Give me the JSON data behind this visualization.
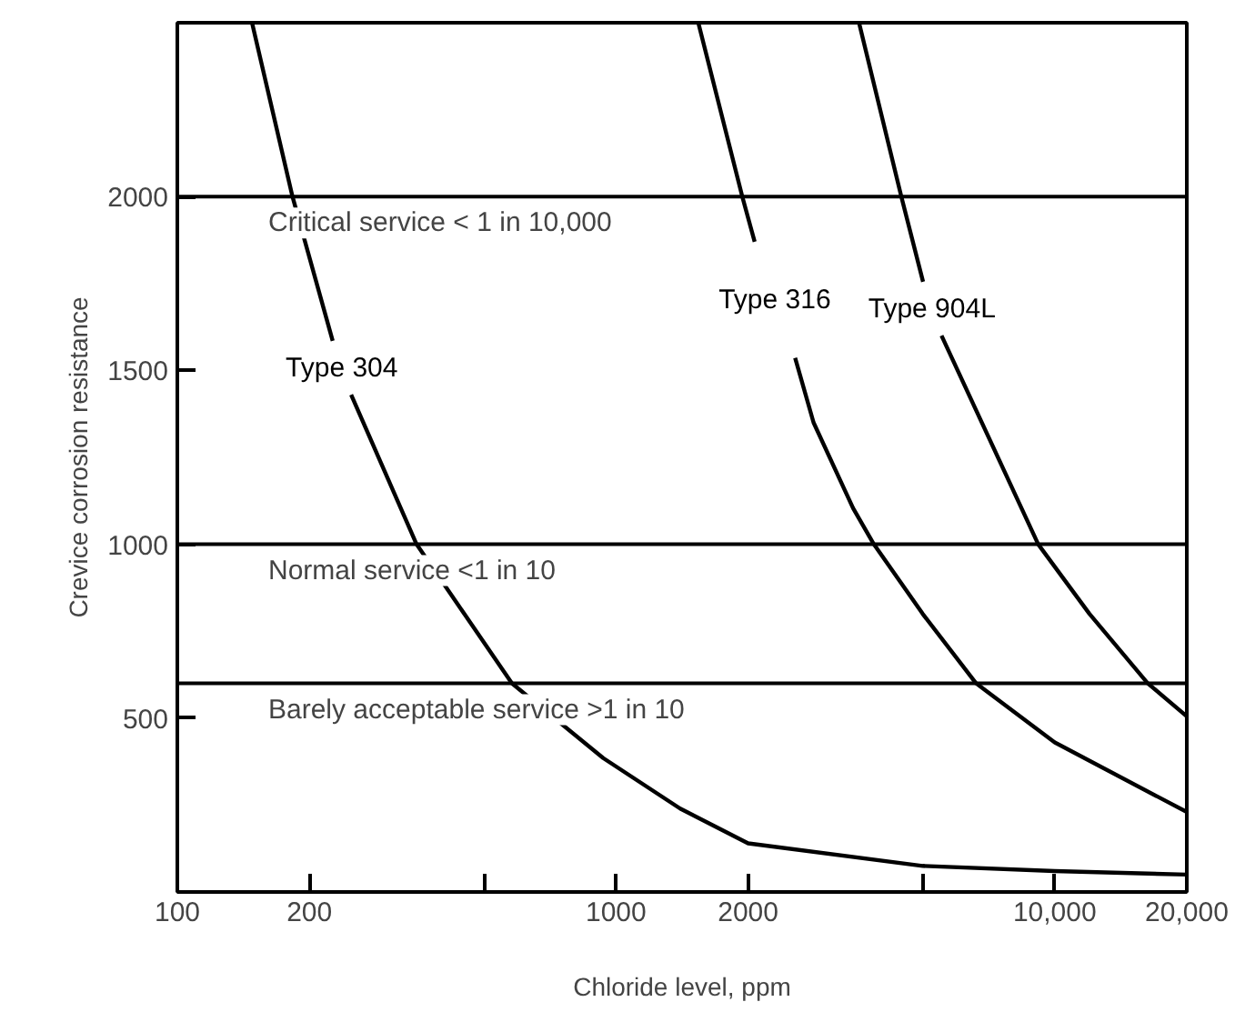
{
  "chart_data": {
    "type": "line",
    "xlabel": "Chloride level, ppm",
    "ylabel": "Crevice corrosion resistance",
    "log": "x",
    "xlim": [
      100,
      20000
    ],
    "ylim": [
      0,
      2500
    ],
    "xticks": [
      100,
      200,
      {
        "value": 500,
        "label": null
      },
      1000,
      2000,
      {
        "value": 5000,
        "label": null
      },
      {
        "value": 10000,
        "label": "10,000"
      },
      {
        "value": 20000,
        "label": "20,000"
      }
    ],
    "yticks": [
      500,
      1000,
      1500,
      2000
    ],
    "series": [
      {
        "name": "Type 304",
        "color": "#000000",
        "x": [
          148,
          183,
          226,
          237,
          249,
          351,
          579,
          935,
          1400,
          2000,
          5000,
          10000,
          20000
        ],
        "values": [
          2500,
          2000,
          1585,
          null,
          1430,
          1000,
          600,
          385,
          240,
          140,
          75,
          60,
          50
        ]
      },
      {
        "name": "Type 316",
        "color": "#000000",
        "x": [
          1540,
          1940,
          2070,
          2300,
          2560,
          2820,
          3470,
          3870,
          5000,
          6620,
          10000,
          20000
        ],
        "values": [
          2500,
          2000,
          1870,
          null,
          1536,
          1350,
          1104,
          1000,
          800,
          600,
          430,
          230
        ]
      },
      {
        "name": "Type 904L",
        "color": "#000000",
        "x": [
          3580,
          4470,
          5010,
          5250,
          5520,
          8320,
          9170,
          12000,
          16300,
          20000
        ],
        "values": [
          2500,
          2000,
          1755,
          null,
          1600,
          1115,
          1000,
          800,
          600,
          505
        ]
      }
    ],
    "ref_lines": [
      {
        "axis": "y",
        "value": 2000,
        "label": "Critical service < 1 in 10,000",
        "color": "#000000"
      },
      {
        "axis": "y",
        "value": 1000,
        "label": "Normal service  <1 in 10",
        "color": "#000000"
      },
      {
        "axis": "y",
        "value": 600,
        "label": "Barely acceptable service  >1 in 10",
        "color": "#000000"
      }
    ]
  }
}
